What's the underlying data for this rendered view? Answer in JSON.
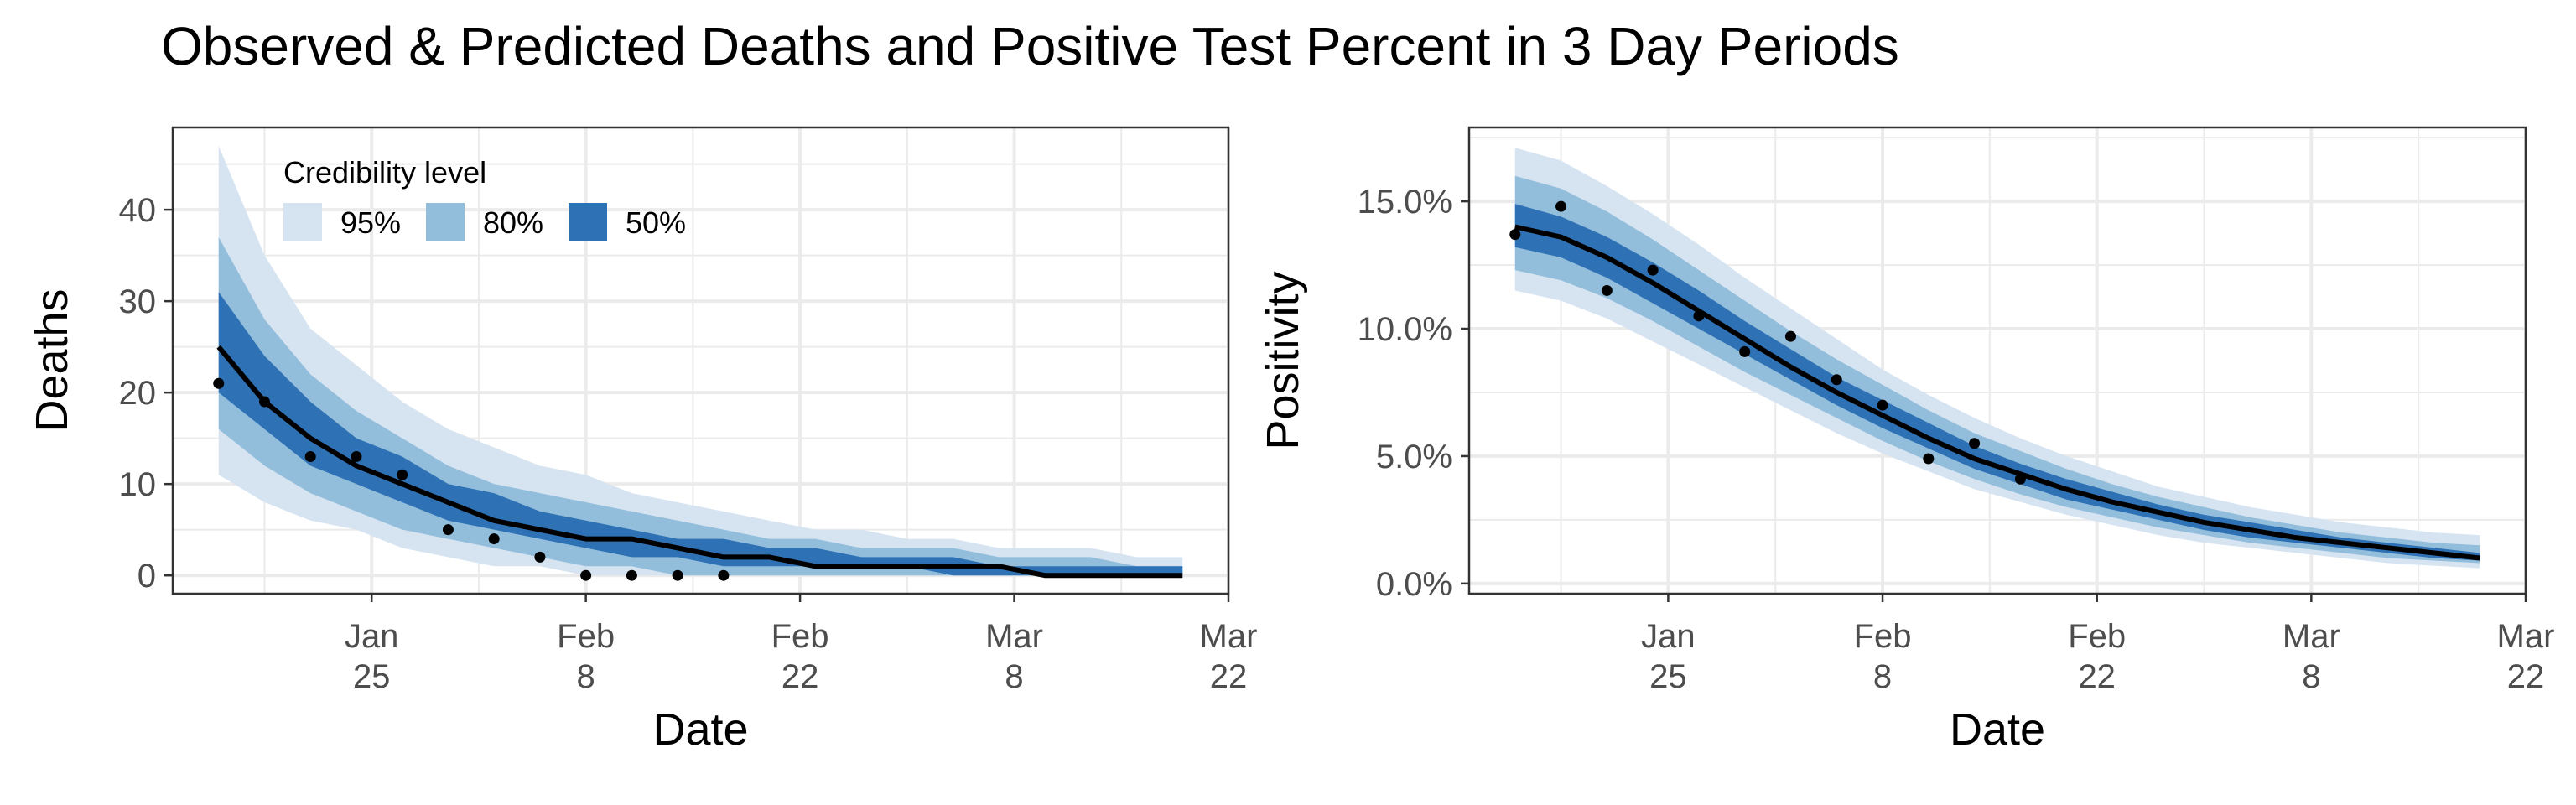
{
  "title": "Observed & Predicted Deaths and Positive Test Percent in 3 Day Periods",
  "legend": {
    "title": "Credibility level",
    "items": [
      {
        "label": "95%",
        "color": "#d6e4f2"
      },
      {
        "label": "80%",
        "color": "#92bddb"
      },
      {
        "label": "50%",
        "color": "#2e72b5"
      }
    ]
  },
  "chart_data": [
    {
      "type": "line",
      "xlabel": "Date",
      "ylabel": "Deaths",
      "xlim": [
        "2021-01-12",
        "2021-03-22"
      ],
      "ylim": [
        -2,
        49
      ],
      "x_ticks": [
        {
          "date": "2021-01-25",
          "line1": "Jan",
          "line2": "25"
        },
        {
          "date": "2021-02-08",
          "line1": "Feb",
          "line2": "8"
        },
        {
          "date": "2021-02-22",
          "line1": "Feb",
          "line2": "22"
        },
        {
          "date": "2021-03-08",
          "line1": "Mar",
          "line2": "8"
        },
        {
          "date": "2021-03-22",
          "line1": "Mar",
          "line2": "22"
        }
      ],
      "y_ticks": [
        {
          "value": 0,
          "label": "0"
        },
        {
          "value": 10,
          "label": "10"
        },
        {
          "value": 20,
          "label": "20"
        },
        {
          "value": 30,
          "label": "30"
        },
        {
          "value": 40,
          "label": "40"
        }
      ],
      "grid": true,
      "legend_position": "top-left",
      "x": [
        "2021-01-15",
        "2021-01-18",
        "2021-01-21",
        "2021-01-24",
        "2021-01-27",
        "2021-01-30",
        "2021-02-02",
        "2021-02-05",
        "2021-02-08",
        "2021-02-11",
        "2021-02-14",
        "2021-02-17",
        "2021-02-20",
        "2021-02-23",
        "2021-02-26",
        "2021-03-01",
        "2021-03-04",
        "2021-03-07",
        "2021-03-10",
        "2021-03-13",
        "2021-03-16",
        "2021-03-19"
      ],
      "median": [
        25,
        19,
        15,
        12,
        10,
        8,
        6,
        5,
        4,
        4,
        3,
        2,
        2,
        1,
        1,
        1,
        1,
        1,
        0,
        0,
        0,
        0
      ],
      "bands": {
        "95": {
          "lower": [
            11,
            8,
            6,
            5,
            3,
            2,
            1,
            1,
            0,
            0,
            0,
            0,
            0,
            0,
            0,
            0,
            0,
            0,
            0,
            0,
            0,
            0
          ],
          "upper": [
            47,
            35,
            27,
            23,
            19,
            16,
            14,
            12,
            11,
            9,
            8,
            7,
            6,
            5,
            5,
            4,
            4,
            3,
            3,
            3,
            2,
            2
          ]
        },
        "80": {
          "lower": [
            16,
            12,
            9,
            7,
            5,
            4,
            3,
            2,
            1,
            1,
            0,
            0,
            0,
            0,
            0,
            0,
            0,
            0,
            0,
            0,
            0,
            0
          ],
          "upper": [
            37,
            28,
            22,
            18,
            15,
            12,
            10,
            9,
            8,
            7,
            6,
            5,
            4,
            4,
            3,
            3,
            3,
            2,
            2,
            2,
            1,
            1
          ]
        },
        "50": {
          "lower": [
            20,
            16,
            12,
            10,
            8,
            6,
            5,
            4,
            3,
            2,
            2,
            1,
            1,
            1,
            1,
            1,
            0,
            0,
            0,
            0,
            0,
            0
          ],
          "upper": [
            31,
            24,
            19,
            15,
            13,
            10,
            9,
            7,
            6,
            5,
            4,
            4,
            3,
            3,
            2,
            2,
            2,
            1,
            1,
            1,
            1,
            1
          ]
        }
      },
      "observed": {
        "x": [
          "2021-01-15",
          "2021-01-18",
          "2021-01-21",
          "2021-01-24",
          "2021-01-27",
          "2021-01-30",
          "2021-02-02",
          "2021-02-05",
          "2021-02-08",
          "2021-02-11",
          "2021-02-14",
          "2021-02-17"
        ],
        "y": [
          21,
          19,
          13,
          13,
          11,
          5,
          4,
          2,
          0,
          0,
          0,
          0
        ]
      }
    },
    {
      "type": "line",
      "xlabel": "Date",
      "ylabel": "Positivity",
      "xlim": [
        "2021-01-12",
        "2021-03-22"
      ],
      "ylim": [
        -0.4,
        17.9
      ],
      "x_ticks": [
        {
          "date": "2021-01-25",
          "line1": "Jan",
          "line2": "25"
        },
        {
          "date": "2021-02-08",
          "line1": "Feb",
          "line2": "8"
        },
        {
          "date": "2021-02-22",
          "line1": "Feb",
          "line2": "22"
        },
        {
          "date": "2021-03-08",
          "line1": "Mar",
          "line2": "8"
        },
        {
          "date": "2021-03-22",
          "line1": "Mar",
          "line2": "22"
        }
      ],
      "y_ticks": [
        {
          "value": 0,
          "label": "0.0%"
        },
        {
          "value": 5,
          "label": "5.0%"
        },
        {
          "value": 10,
          "label": "10.0%"
        },
        {
          "value": 15,
          "label": "15.0%"
        }
      ],
      "grid": true,
      "x": [
        "2021-01-15",
        "2021-01-18",
        "2021-01-21",
        "2021-01-24",
        "2021-01-27",
        "2021-01-30",
        "2021-02-02",
        "2021-02-05",
        "2021-02-08",
        "2021-02-11",
        "2021-02-14",
        "2021-02-17",
        "2021-02-20",
        "2021-02-23",
        "2021-02-26",
        "2021-03-01",
        "2021-03-04",
        "2021-03-07",
        "2021-03-10",
        "2021-03-13",
        "2021-03-16",
        "2021-03-19"
      ],
      "median": [
        14.0,
        13.6,
        12.8,
        11.8,
        10.7,
        9.6,
        8.5,
        7.5,
        6.6,
        5.7,
        4.9,
        4.3,
        3.7,
        3.2,
        2.8,
        2.4,
        2.1,
        1.8,
        1.6,
        1.4,
        1.2,
        1.0
      ],
      "bands": {
        "95": {
          "lower": [
            11.5,
            11.1,
            10.4,
            9.5,
            8.6,
            7.7,
            6.8,
            5.9,
            5.1,
            4.4,
            3.7,
            3.2,
            2.7,
            2.3,
            1.9,
            1.6,
            1.4,
            1.2,
            1.0,
            0.8,
            0.7,
            0.6
          ],
          "upper": [
            17.1,
            16.6,
            15.6,
            14.5,
            13.3,
            12.0,
            10.8,
            9.6,
            8.4,
            7.4,
            6.5,
            5.7,
            5.0,
            4.4,
            3.8,
            3.4,
            3.0,
            2.7,
            2.4,
            2.2,
            2.0,
            1.9
          ]
        },
        "80": {
          "lower": [
            12.3,
            11.9,
            11.2,
            10.3,
            9.3,
            8.3,
            7.4,
            6.5,
            5.6,
            4.8,
            4.1,
            3.5,
            3.0,
            2.6,
            2.2,
            1.9,
            1.6,
            1.4,
            1.2,
            1.0,
            0.9,
            0.8
          ],
          "upper": [
            16.0,
            15.5,
            14.6,
            13.5,
            12.3,
            11.1,
            9.9,
            8.8,
            7.8,
            6.8,
            5.9,
            5.2,
            4.5,
            3.9,
            3.4,
            3.0,
            2.6,
            2.3,
            2.0,
            1.8,
            1.6,
            1.5
          ]
        },
        "50": {
          "lower": [
            13.2,
            12.8,
            12.0,
            11.0,
            10.0,
            9.0,
            8.0,
            7.0,
            6.1,
            5.3,
            4.5,
            3.9,
            3.3,
            2.9,
            2.5,
            2.1,
            1.8,
            1.6,
            1.4,
            1.2,
            1.0,
            0.9
          ],
          "upper": [
            14.9,
            14.4,
            13.6,
            12.6,
            11.5,
            10.3,
            9.2,
            8.1,
            7.2,
            6.3,
            5.4,
            4.7,
            4.1,
            3.6,
            3.1,
            2.7,
            2.4,
            2.1,
            1.8,
            1.6,
            1.4,
            1.2
          ]
        }
      },
      "observed": {
        "x": [
          "2021-01-15",
          "2021-01-18",
          "2021-01-21",
          "2021-01-24",
          "2021-01-27",
          "2021-01-30",
          "2021-02-02",
          "2021-02-05",
          "2021-02-08",
          "2021-02-11",
          "2021-02-14",
          "2021-02-17"
        ],
        "y": [
          13.7,
          14.8,
          11.5,
          12.3,
          10.5,
          9.1,
          9.7,
          8.0,
          7.0,
          4.9,
          5.5,
          4.1
        ]
      }
    }
  ]
}
